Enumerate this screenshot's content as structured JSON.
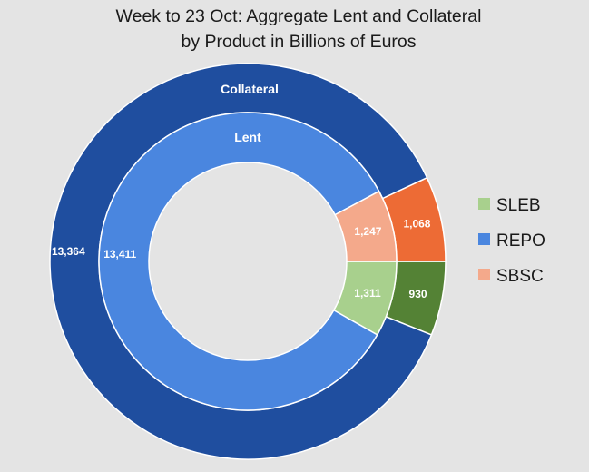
{
  "chart_data": {
    "type": "doughnut",
    "title": [
      "Week to 23 Oct:  Aggregate Lent and Collateral",
      "by Product in Billions of Euros"
    ],
    "categories": [
      "SLEB",
      "REPO",
      "SBSC"
    ],
    "series": [
      {
        "name": "Collateral",
        "values": [
          930,
          13364,
          1068
        ],
        "colors": [
          "#548235",
          "#1f4e9f",
          "#ed6b35"
        ]
      },
      {
        "name": "Lent",
        "values": [
          1311,
          13411,
          1247
        ],
        "colors": [
          "#a8d08d",
          "#4a86df",
          "#f4a98b"
        ]
      }
    ],
    "value_labels": {
      "Collateral": [
        "930",
        "13,364",
        "1,068"
      ],
      "Lent": [
        "1,311",
        "13,411",
        "1,247"
      ]
    },
    "legend": {
      "position": "right",
      "items": [
        {
          "label": "SLEB",
          "color": "#a8d08d"
        },
        {
          "label": "REPO",
          "color": "#4a86df"
        },
        {
          "label": "SBSC",
          "color": "#f4a98b"
        }
      ]
    }
  }
}
